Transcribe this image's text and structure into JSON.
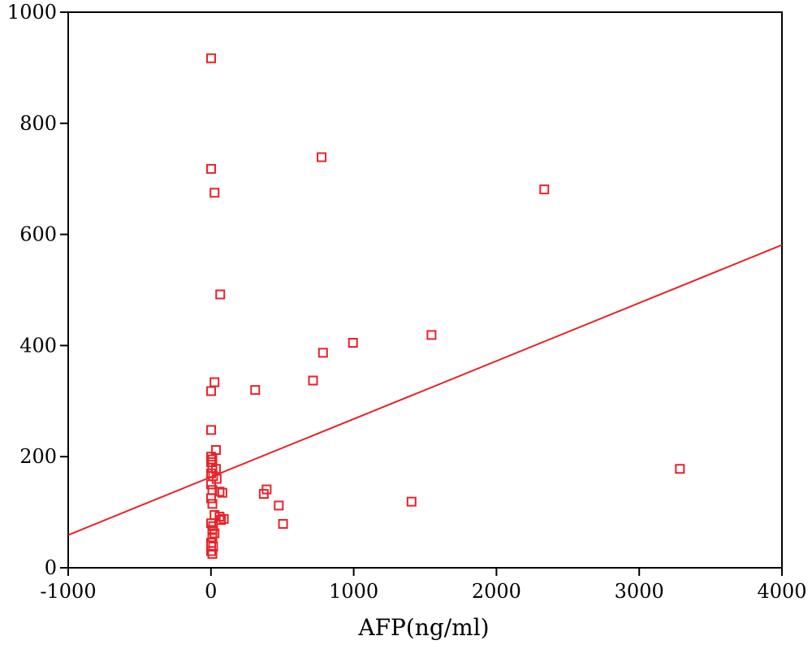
{
  "chart_data": {
    "type": "scatter",
    "title": "",
    "xlabel": "AFP(ng/ml)",
    "ylabel": "",
    "xlim": [
      -1000,
      4000
    ],
    "ylim": [
      0,
      1000
    ],
    "x_ticks": [
      -1000,
      0,
      1000,
      2000,
      3000,
      4000
    ],
    "y_ticks": [
      0,
      200,
      400,
      600,
      800,
      1000
    ],
    "grid": false,
    "legend": "none",
    "marker": "square-open",
    "color": "#e8222a",
    "series": [
      {
        "points": [
          [
            1,
            917
          ],
          [
            1,
            718
          ],
          [
            25,
            675
          ],
          [
            65,
            492
          ],
          [
            775,
            739
          ],
          [
            2335,
            681
          ],
          [
            995,
            405
          ],
          [
            1545,
            419
          ],
          [
            785,
            387
          ],
          [
            715,
            337
          ],
          [
            310,
            320
          ],
          [
            25,
            334
          ],
          [
            1,
            318
          ],
          [
            1,
            248
          ],
          [
            1,
            200
          ],
          [
            10,
            195
          ],
          [
            1,
            190
          ],
          [
            35,
            212
          ],
          [
            10,
            180
          ],
          [
            35,
            178
          ],
          [
            1,
            170
          ],
          [
            15,
            165
          ],
          [
            40,
            160
          ],
          [
            1,
            150
          ],
          [
            10,
            140
          ],
          [
            60,
            137
          ],
          [
            80,
            135
          ],
          [
            1,
            125
          ],
          [
            10,
            115
          ],
          [
            390,
            141
          ],
          [
            370,
            133
          ],
          [
            475,
            112
          ],
          [
            505,
            79
          ],
          [
            1405,
            119
          ],
          [
            3285,
            178
          ],
          [
            25,
            95
          ],
          [
            60,
            92
          ],
          [
            90,
            88
          ],
          [
            70,
            86
          ],
          [
            1,
            80
          ],
          [
            15,
            75
          ],
          [
            10,
            68
          ],
          [
            25,
            62
          ],
          [
            10,
            55
          ],
          [
            1,
            45
          ],
          [
            15,
            38
          ],
          [
            1,
            30
          ],
          [
            10,
            25
          ]
        ]
      }
    ],
    "trendline": {
      "x": [
        -1000,
        4000
      ],
      "y": [
        59,
        581
      ]
    }
  }
}
